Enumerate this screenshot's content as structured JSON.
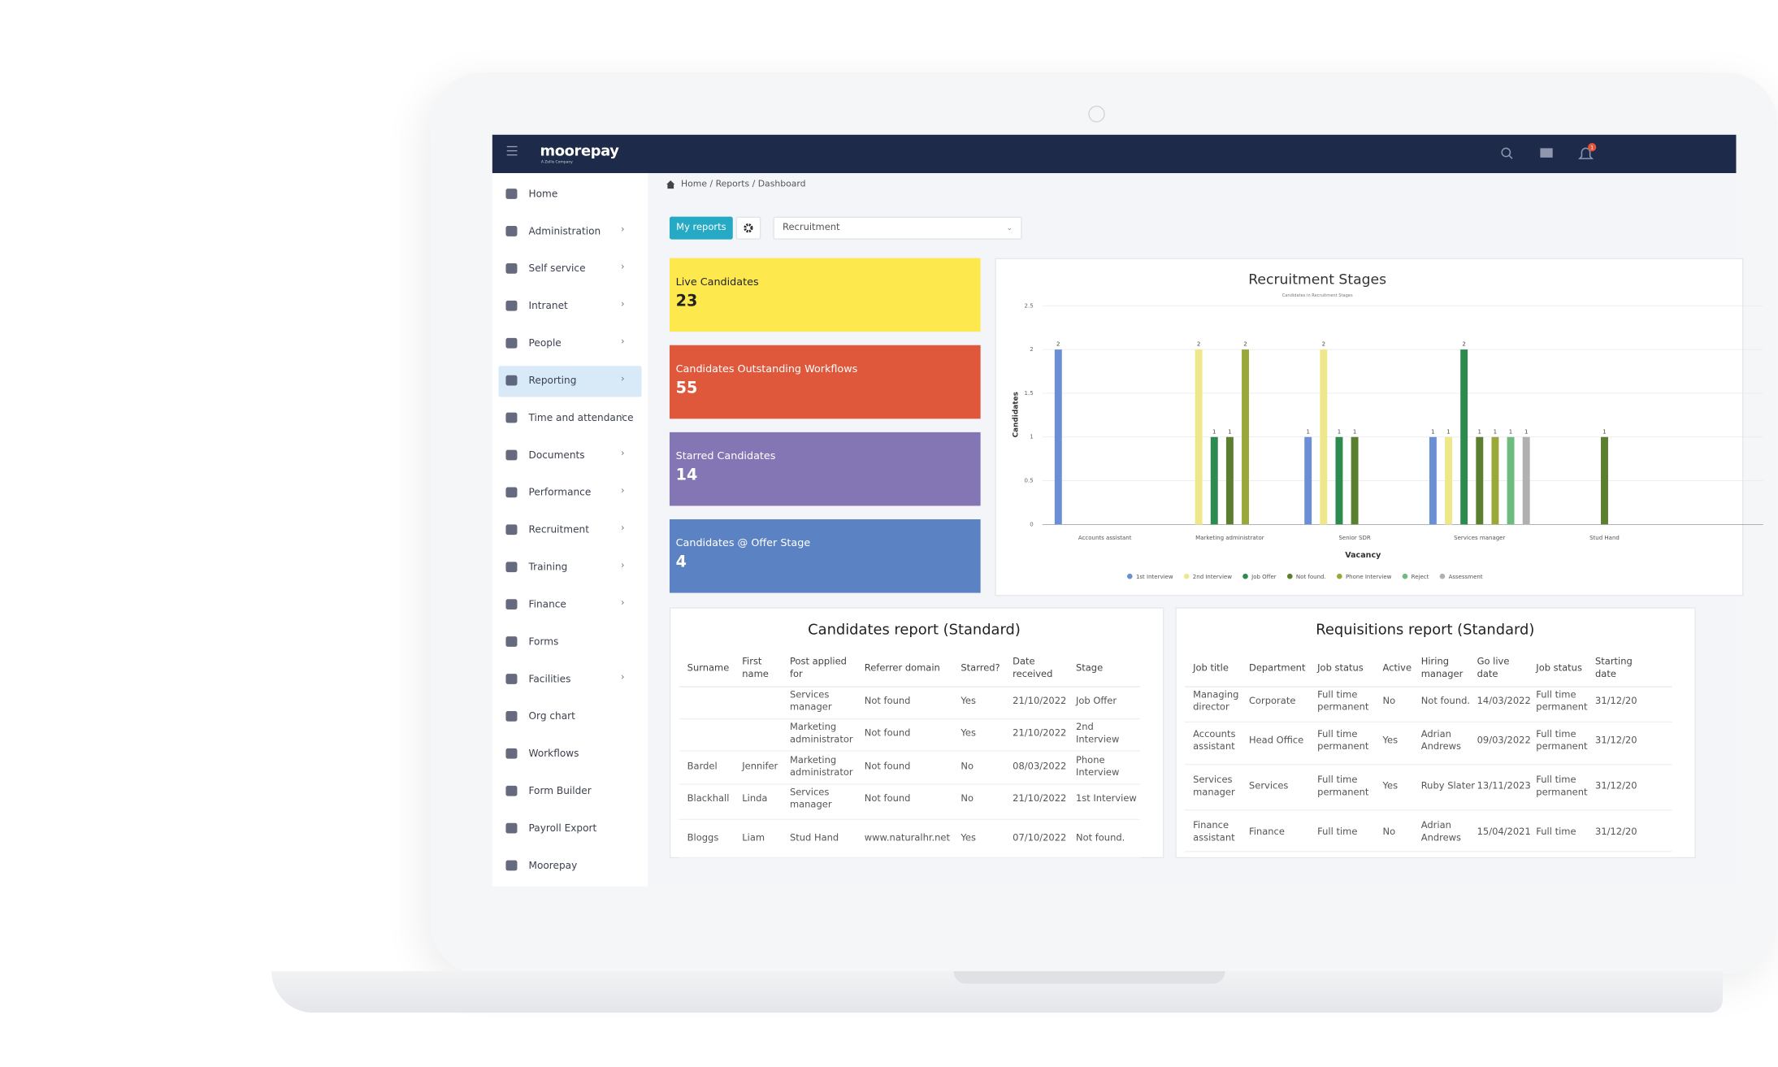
{
  "header": {
    "logo": "moorepay",
    "logo_tagline": "A Zellis Company",
    "notification_count": "1"
  },
  "sidebar": {
    "active_index": 5,
    "items": [
      {
        "label": "Home",
        "submenu": false
      },
      {
        "label": "Administration",
        "submenu": true
      },
      {
        "label": "Self service",
        "submenu": true
      },
      {
        "label": "Intranet",
        "submenu": true
      },
      {
        "label": "People",
        "submenu": true
      },
      {
        "label": "Reporting",
        "submenu": true
      },
      {
        "label": "Time and attendance",
        "submenu": true
      },
      {
        "label": "Documents",
        "submenu": true
      },
      {
        "label": "Performance",
        "submenu": true
      },
      {
        "label": "Recruitment",
        "submenu": true
      },
      {
        "label": "Training",
        "submenu": true
      },
      {
        "label": "Finance",
        "submenu": true
      },
      {
        "label": "Forms",
        "submenu": false
      },
      {
        "label": "Facilities",
        "submenu": true
      },
      {
        "label": "Org chart",
        "submenu": false
      },
      {
        "label": "Workflows",
        "submenu": false
      },
      {
        "label": "Form Builder",
        "submenu": false
      },
      {
        "label": "Payroll Export",
        "submenu": false
      },
      {
        "label": "Moorepay",
        "submenu": false
      }
    ]
  },
  "breadcrumb": "Home / Reports / Dashboard",
  "toolbar": {
    "button": "My reports",
    "select": "Recruitment"
  },
  "kpis": [
    {
      "label": "Live Candidates",
      "value": 23,
      "color": "#fde84d",
      "text_color": "#222222"
    },
    {
      "label": "Candidates Outstanding Workflows",
      "value": 55,
      "color": "#df583b",
      "text_color": "#ffffff"
    },
    {
      "label": "Starred Candidates",
      "value": 14,
      "color": "#8476b5",
      "text_color": "#ffffff"
    },
    {
      "label": "Candidates @ Offer Stage",
      "value": 4,
      "color": "#5b82c2",
      "text_color": "#ffffff"
    }
  ],
  "chart_data": {
    "type": "bar",
    "title": "Recruitment Stages",
    "subtitle": "Candidates in Recruitment Stages",
    "x_label": "Vacancy",
    "y_label": "Candidates",
    "categories": [
      "Accounts assistant",
      "Marketing administrator",
      "Senior SDR",
      "Services manager",
      "Stud Hand"
    ],
    "ylim": [
      0,
      2.5
    ],
    "yticks": [
      0,
      0.5,
      1,
      1.5,
      2,
      2.5
    ],
    "grid": true,
    "series": [
      {
        "name": "1st Interview",
        "color": "#6b8fd4",
        "values": [
          2,
          null,
          1,
          1,
          null
        ]
      },
      {
        "name": "2nd Interview",
        "color": "#efe88a",
        "values": [
          null,
          2,
          2,
          1,
          null
        ]
      },
      {
        "name": "Job Offer",
        "color": "#2e8b4f",
        "values": [
          null,
          1,
          1,
          2,
          null
        ]
      },
      {
        "name": "Not found.",
        "color": "#5b7f2e",
        "values": [
          null,
          1,
          1,
          1,
          1
        ]
      },
      {
        "name": "Phone Interview",
        "color": "#9aa83a",
        "values": [
          null,
          2,
          null,
          1,
          null
        ]
      },
      {
        "name": "Reject",
        "color": "#6dbb7f",
        "values": [
          null,
          null,
          null,
          1,
          null
        ]
      },
      {
        "name": "Assessment",
        "color": "#b0b0b0",
        "values": [
          null,
          null,
          null,
          1,
          null
        ]
      }
    ]
  },
  "tables": [
    {
      "title": "Candidates report (Standard)",
      "columns": [
        "Surname",
        "First name",
        "Post applied for",
        "Referrer domain",
        "Starred?",
        "Date received",
        "Stage"
      ],
      "rows": [
        [
          null,
          null,
          "Services manager",
          "Not found",
          "Yes",
          "21/10/2022",
          "Job Offer"
        ],
        [
          null,
          null,
          "Marketing administrator",
          "Not found",
          "Yes",
          "21/10/2022",
          "2nd Interview"
        ],
        [
          "Bardel",
          "Jennifer",
          "Marketing administrator",
          "Not found",
          "No",
          "08/03/2022",
          "Phone Interview"
        ],
        [
          "Blackhall",
          "Linda",
          "Services manager",
          "Not found",
          "No",
          "21/10/2022",
          "1st Interview"
        ],
        [
          "Bloggs",
          "Liam",
          "Stud Hand",
          "www.naturalhr.net",
          "Yes",
          "07/10/2022",
          "Not found."
        ]
      ]
    },
    {
      "title": "Requisitions report (Standard)",
      "columns": [
        "Job title",
        "Department",
        "Job status",
        "Active",
        "Hiring manager",
        "Go live date",
        "Job status",
        "Starting date"
      ],
      "rows": [
        [
          "Managing director",
          "Corporate",
          "Full time permanent",
          "No",
          "Not found.",
          "14/03/2022",
          "Full time permanent",
          "31/12/20"
        ],
        [
          "Accounts assistant",
          "Head Office",
          "Full time permanent",
          "Yes",
          "Adrian Andrews",
          "09/03/2022",
          "Full time permanent",
          "31/12/20"
        ],
        [
          "Services manager",
          "Services",
          "Full time permanent",
          "Yes",
          "Ruby Slater",
          "13/11/2023",
          "Full time permanent",
          "31/12/20"
        ],
        [
          "Finance assistant",
          "Finance",
          "Full time",
          "No",
          "Adrian Andrews",
          "15/04/2021",
          "Full time",
          "31/12/20"
        ]
      ]
    }
  ]
}
